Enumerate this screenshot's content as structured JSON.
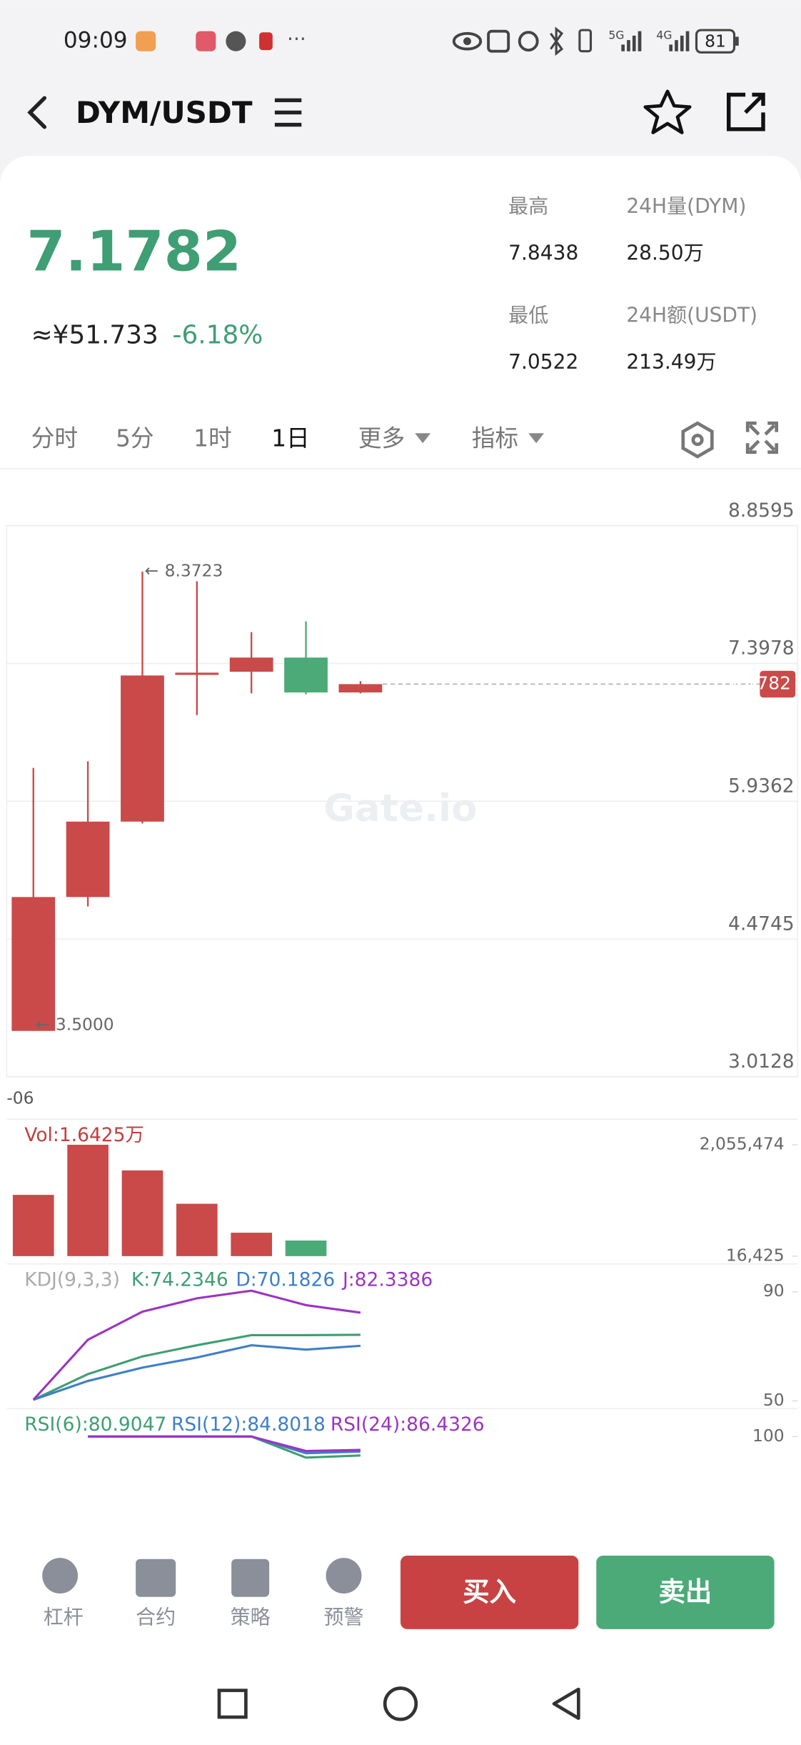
{
  "status_bar": {
    "time": "09:09",
    "signal_1": "5G",
    "signal_2": "4G",
    "battery": "81"
  },
  "header": {
    "title": "DYM/USDT"
  },
  "ticker": {
    "price": "7.1782",
    "cny": "≈¥51.733",
    "change": "-6.18%",
    "stats": [
      {
        "label": "最高",
        "value": "7.8438"
      },
      {
        "label": "24H量(DYM)",
        "value": "28.50万"
      },
      {
        "label": "最低",
        "value": "7.0522"
      },
      {
        "label": "24H额(USDT)",
        "value": "213.49万"
      }
    ]
  },
  "tabs": [
    "分时",
    "5分",
    "1时",
    "1日",
    "更多",
    "指标"
  ],
  "active_tab": "1日",
  "watermark": "Gate.io",
  "chart": {
    "type": "candlestick",
    "up_color": "#c94a49",
    "down_color": "#4caa78",
    "candles": [
      {
        "open": 3.5,
        "high": 6.29,
        "low": 3.5,
        "close": 4.92
      },
      {
        "open": 4.92,
        "high": 6.36,
        "low": 4.82,
        "close": 5.72
      },
      {
        "open": 5.72,
        "high": 8.3723,
        "low": 5.7,
        "close": 7.27
      },
      {
        "open": 7.28,
        "high": 8.27,
        "low": 6.85,
        "close": 7.3
      },
      {
        "open": 7.31,
        "high": 7.73,
        "low": 7.08,
        "close": 7.46
      },
      {
        "open": 7.46,
        "high": 7.8438,
        "low": 7.07,
        "close": 7.09
      },
      {
        "open": 7.09,
        "high": 7.21,
        "low": 7.08,
        "close": 7.1782
      }
    ],
    "ylim": [
      3.0128,
      8.8595
    ],
    "yticks": [
      3.0128,
      4.4745,
      5.9362,
      7.3978,
      8.8595
    ],
    "last_price": 7.1782,
    "high_marker": 8.3723,
    "low_marker": {
      "value": 3.5,
      "label": "3.5000"
    },
    "x_label": "-06"
  },
  "volume": {
    "type": "bar",
    "label": "Vol:1.6425万",
    "ylim": [
      16425,
      2055474
    ],
    "yticks": [
      {
        "value": 16425,
        "label": "16,425"
      },
      {
        "value": 2055474,
        "label": "2,055,474"
      }
    ],
    "values": [
      1138000,
      2055474,
      1586000,
      975000,
      445000,
      302000,
      16425
    ]
  },
  "kdj": {
    "type": "line",
    "label": "KDJ(9,3,3)",
    "ylim": [
      50,
      90
    ],
    "yticks": [
      50,
      90
    ],
    "series": [
      {
        "name": "K:74.2346",
        "color": "#3f9e74",
        "values": [
          50.4,
          59.8,
          66.3,
          70.4,
          74.1,
          74.1,
          74.2346
        ]
      },
      {
        "name": "D:70.1826",
        "color": "#3f7fc8",
        "values": [
          50.4,
          57.3,
          62.2,
          65.9,
          70.4,
          68.8,
          70.1826
        ]
      },
      {
        "name": "J:82.3386",
        "color": "#9b35c0",
        "values": [
          50.4,
          72.4,
          82.7,
          87.6,
          90.4,
          85.1,
          82.3386
        ]
      }
    ]
  },
  "rsi": {
    "type": "line",
    "ylim": [
      0,
      100
    ],
    "yticks": [
      100
    ],
    "series": [
      {
        "name": "RSI(6):80.9047",
        "color": "#3f9e74",
        "values": [
          null,
          100,
          100,
          100,
          100,
          78.7,
          80.9047
        ]
      },
      {
        "name": "RSI(12):84.8018",
        "color": "#3f7fc8",
        "values": [
          null,
          100,
          100,
          100,
          100,
          83.1,
          84.8018
        ]
      },
      {
        "name": "RSI(24):86.4326",
        "color": "#9b35c0",
        "values": [
          null,
          100,
          100,
          100,
          100,
          85.4,
          86.4326
        ]
      }
    ]
  },
  "bottom_bar": {
    "items": [
      "杠杆",
      "合约",
      "策略",
      "预警"
    ],
    "buy": "买入",
    "sell": "卖出"
  }
}
